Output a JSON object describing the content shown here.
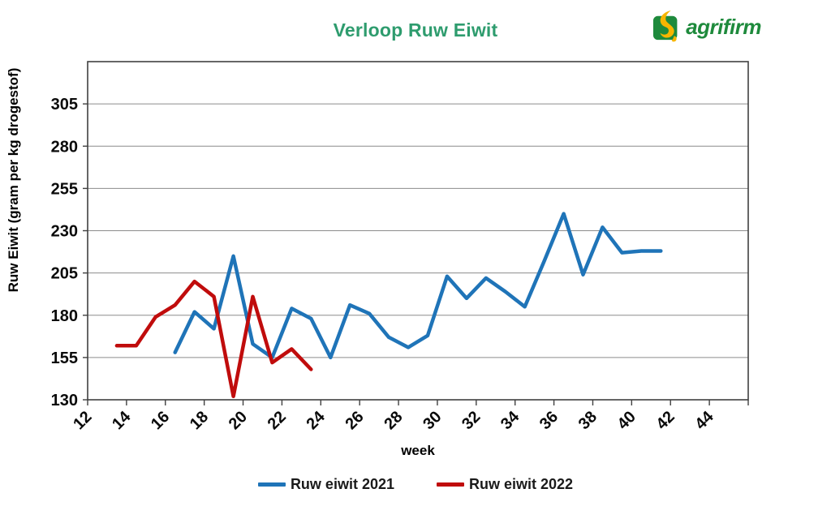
{
  "header": {
    "title": "Verloop Ruw Eiwit",
    "logo_text": "agrifirm",
    "logo_green": "#1E8A3C",
    "logo_yellow": "#F7B500",
    "title_color": "#2E9C6E"
  },
  "chart_data": {
    "type": "line",
    "title": "Verloop Ruw Eiwit",
    "xlabel": "week",
    "ylabel": "Ruw Eiwit (gram per kg drogestof)",
    "xlim": [
      12,
      46
    ],
    "ylim": [
      130,
      330
    ],
    "x_ticks": [
      12,
      14,
      16,
      18,
      20,
      22,
      24,
      26,
      28,
      30,
      32,
      34,
      36,
      38,
      40,
      42,
      44
    ],
    "y_ticks": [
      130,
      155,
      180,
      205,
      230,
      255,
      280,
      305
    ],
    "grid": "horizontal",
    "grid_color": "#8C8C8C",
    "border_color": "#404040",
    "legend_position": "bottom",
    "series": [
      {
        "name": "Ruw eiwit 2021",
        "color": "#1F74B8",
        "x": [
          16,
          17,
          18,
          19,
          20,
          21,
          22,
          23,
          24,
          25,
          26,
          27,
          28,
          29,
          30,
          31,
          32,
          33,
          34,
          35,
          36,
          37,
          38,
          39,
          40,
          41
        ],
        "values": [
          158,
          182,
          172,
          215,
          163,
          155,
          184,
          178,
          155,
          186,
          181,
          167,
          161,
          168,
          203,
          190,
          202,
          194,
          185,
          212,
          240,
          204,
          232,
          217,
          218,
          218
        ]
      },
      {
        "name": "Ruw eiwit 2022",
        "color": "#C00C0C",
        "x": [
          13,
          14,
          15,
          16,
          17,
          18,
          19,
          20,
          21,
          22,
          23
        ],
        "values": [
          162,
          162,
          179,
          186,
          200,
          191,
          132,
          191,
          152,
          160,
          148
        ]
      }
    ]
  }
}
